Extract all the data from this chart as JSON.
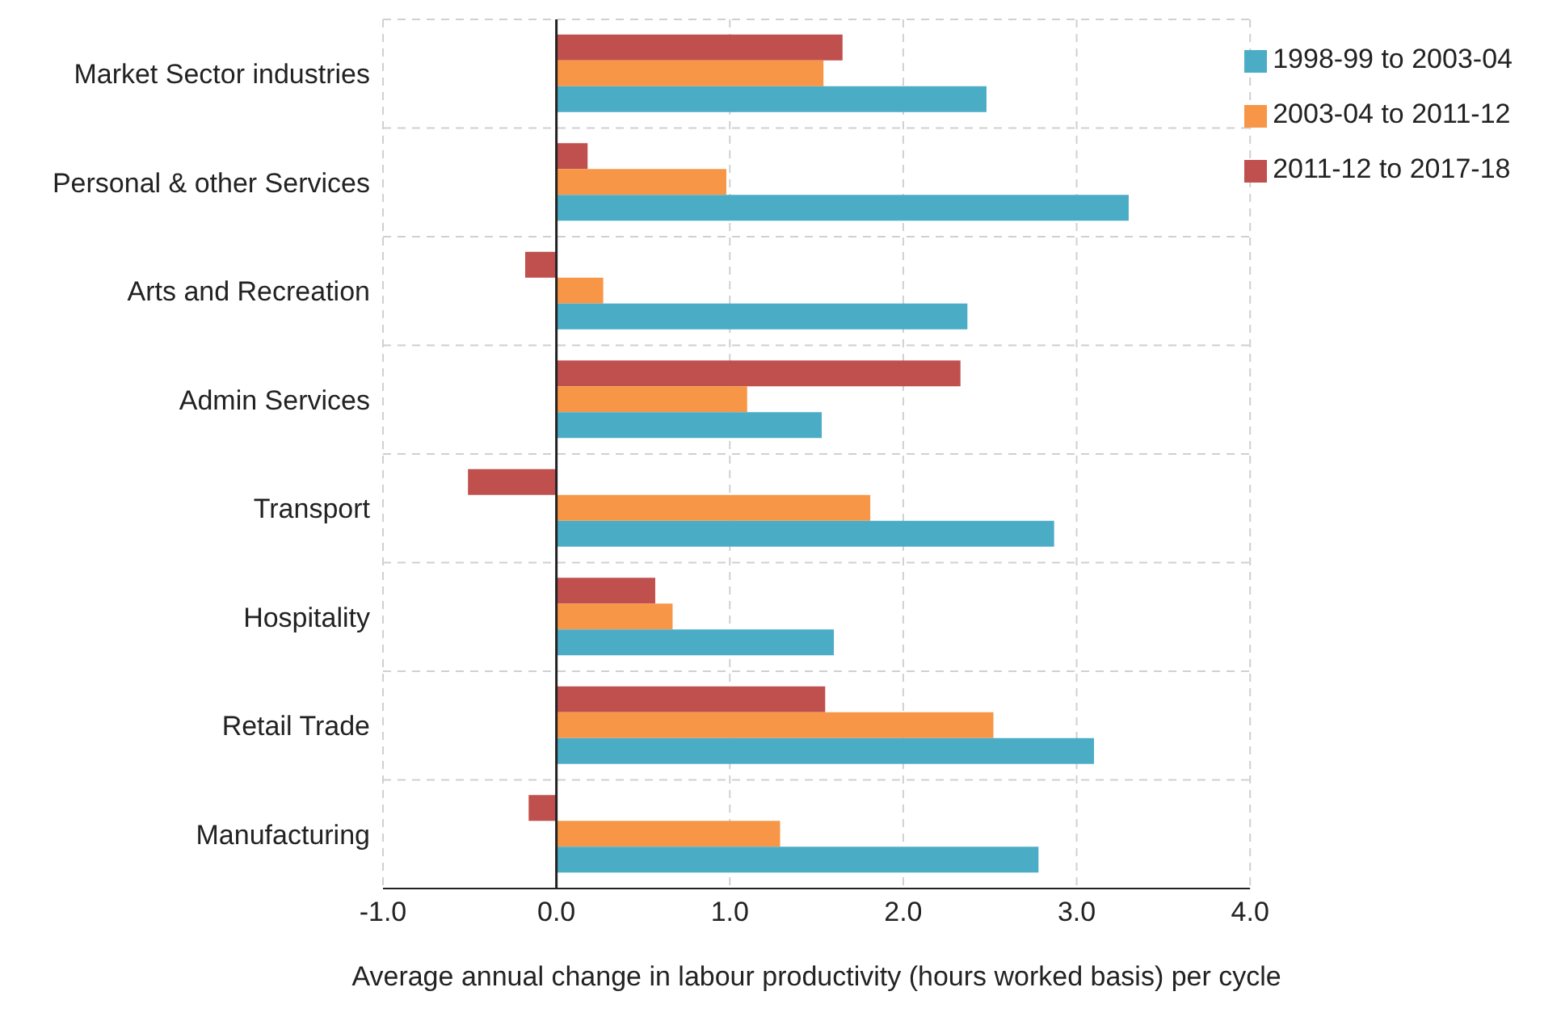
{
  "chart_data": {
    "type": "bar",
    "orientation": "horizontal",
    "xlabel": "Average annual change in labour productivity (hours worked basis) per cycle",
    "categories": [
      "Market Sector industries",
      "Personal & other Services",
      "Arts and Recreation",
      "Admin Services",
      "Transport",
      "Hospitality",
      "Retail Trade",
      "Manufacturing"
    ],
    "series": [
      {
        "name": "2011-12 to 2017-18",
        "color": "#c0504d",
        "values": [
          1.65,
          0.18,
          -0.18,
          2.33,
          -0.51,
          0.57,
          1.55,
          -0.16
        ]
      },
      {
        "name": "2003-04 to 2011-12",
        "color": "#f79646",
        "values": [
          1.54,
          0.98,
          0.27,
          1.1,
          1.81,
          0.67,
          2.52,
          1.29
        ]
      },
      {
        "name": "1998-99 to 2003-04",
        "color": "#4bacc6",
        "values": [
          2.48,
          3.3,
          2.37,
          1.53,
          2.87,
          1.6,
          3.1,
          2.78
        ]
      }
    ],
    "xlim": [
      -1,
      4
    ],
    "xticks": [
      {
        "value": -1,
        "label": "-1.0"
      },
      {
        "value": 0,
        "label": "0.0"
      },
      {
        "value": 1,
        "label": "1.0"
      },
      {
        "value": 2,
        "label": "2.0"
      },
      {
        "value": 3,
        "label": "3.0"
      },
      {
        "value": 4,
        "label": "4.0"
      }
    ],
    "grid": true,
    "legend": "top right"
  }
}
